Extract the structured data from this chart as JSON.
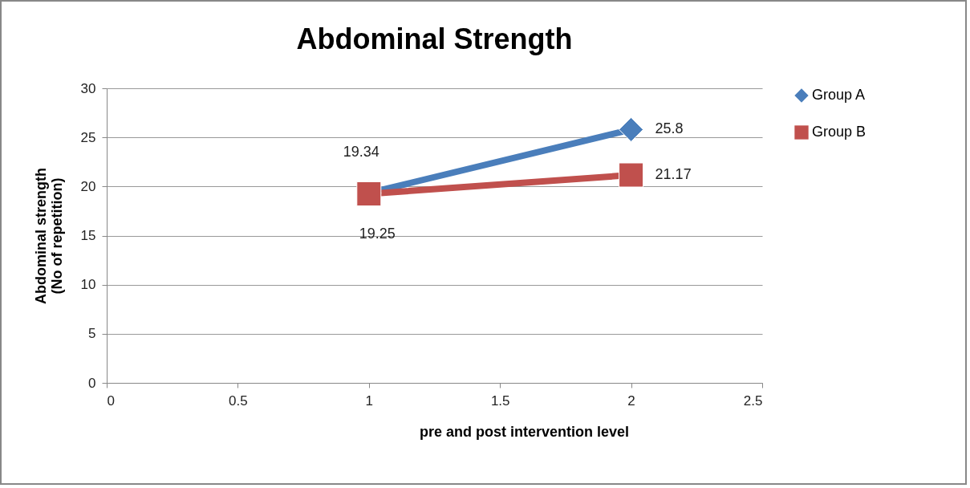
{
  "chart_data": {
    "type": "line",
    "title": "Abdominal Strength",
    "xlabel": "pre and post intervention  level",
    "ylabel": "Abdominal strength\n(No of repetition)",
    "x": [
      1,
      2
    ],
    "series": [
      {
        "name": "Group A",
        "color": "#4a7ebb",
        "marker": "diamond",
        "values": [
          19.34,
          25.8
        ]
      },
      {
        "name": "Group B",
        "color": "#c0504d",
        "marker": "square",
        "values": [
          19.25,
          21.17
        ]
      }
    ],
    "xlim": [
      0,
      2.5
    ],
    "xticks": [
      0,
      0.5,
      1,
      1.5,
      2,
      2.5
    ],
    "ylim": [
      0,
      30
    ],
    "yticks": [
      0,
      5,
      10,
      15,
      20,
      25,
      30
    ],
    "grid": "y",
    "legend": "right",
    "data_labels": true
  }
}
